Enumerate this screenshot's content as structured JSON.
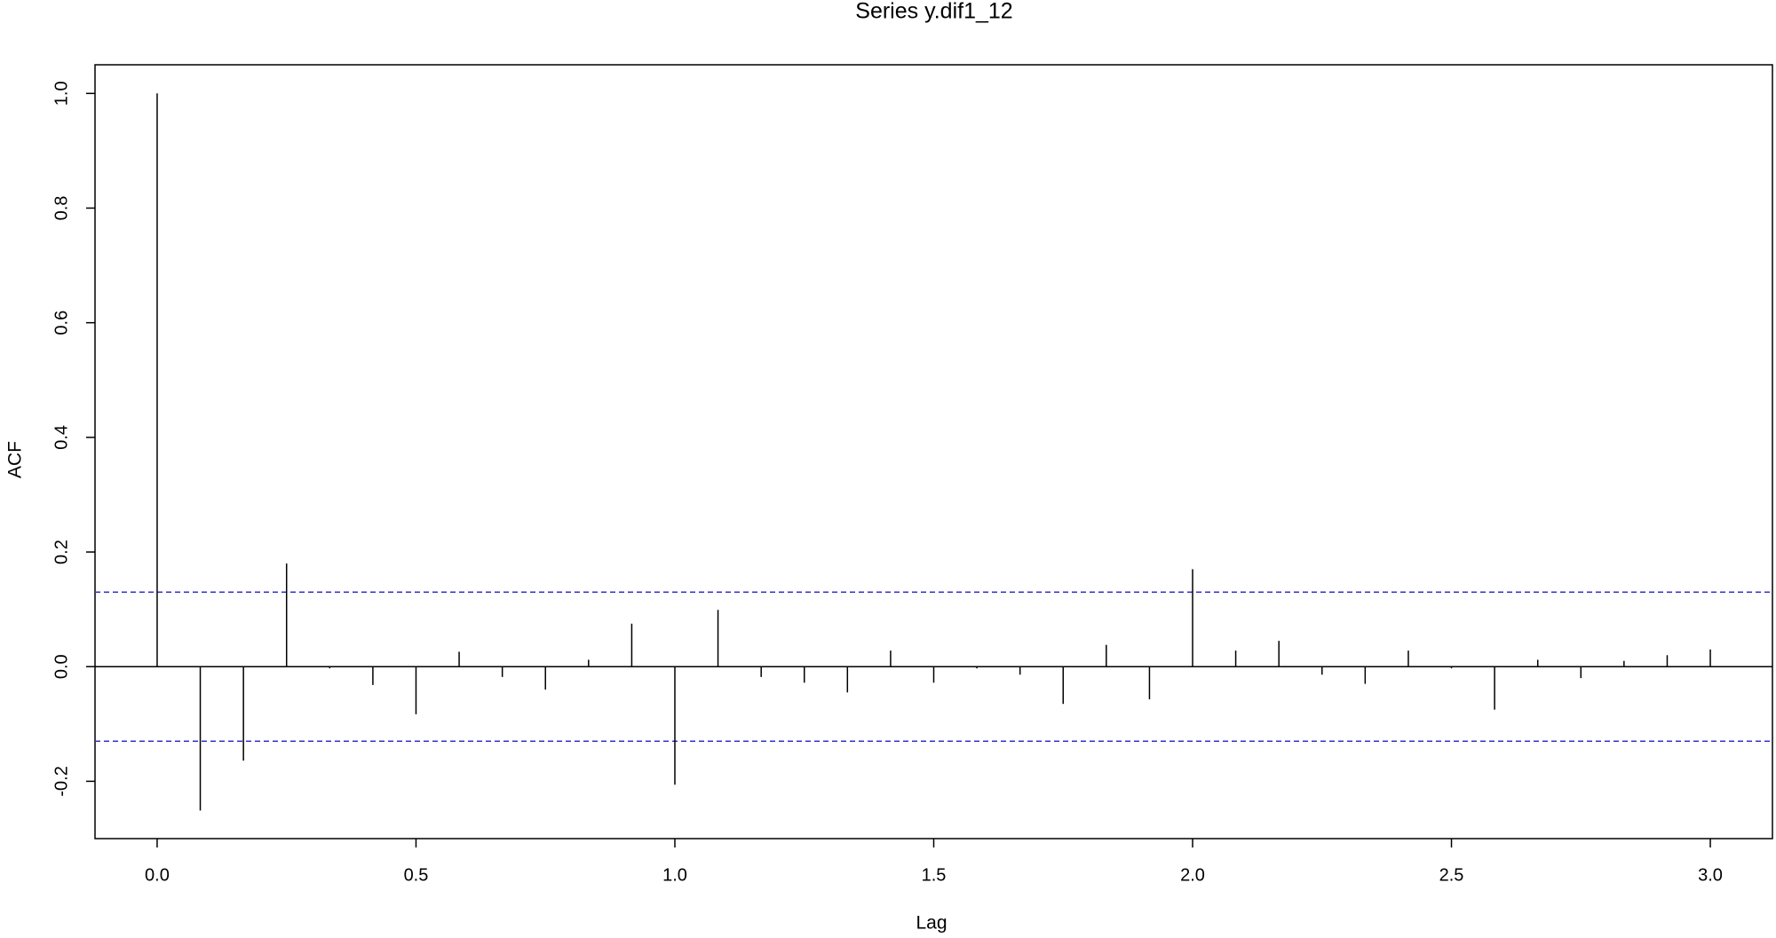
{
  "chart_data": {
    "type": "stem",
    "title": "Series y.dif1_12",
    "xlabel": "Lag",
    "ylabel": "ACF",
    "x": [
      0,
      0.0833,
      0.1667,
      0.25,
      0.3333,
      0.4167,
      0.5,
      0.5833,
      0.6667,
      0.75,
      0.8333,
      0.9167,
      1,
      1.0833,
      1.1667,
      1.25,
      1.3333,
      1.4167,
      1.5,
      1.5833,
      1.6667,
      1.75,
      1.8333,
      1.9167,
      2,
      2.0833,
      2.1667,
      2.25,
      2.3333,
      2.4167,
      2.5,
      2.5833,
      2.6667,
      2.75,
      2.8333,
      2.9167,
      3
    ],
    "values": [
      1.0,
      -0.251,
      -0.164,
      0.18,
      -0.003,
      -0.032,
      -0.083,
      0.026,
      -0.018,
      -0.04,
      0.012,
      0.075,
      -0.206,
      0.099,
      -0.018,
      -0.028,
      -0.045,
      0.028,
      -0.028,
      -0.003,
      -0.014,
      -0.065,
      0.038,
      -0.057,
      0.17,
      0.028,
      0.045,
      -0.014,
      -0.03,
      0.028,
      -0.003,
      -0.075,
      0.012,
      -0.02,
      0.01,
      0.02,
      0.03
    ],
    "color": "#000000",
    "conf_bounds": [
      0.13,
      -0.13
    ],
    "conf_color": "#3333cc",
    "xlim": [
      -0.12,
      3.12
    ],
    "ylim": [
      -0.3,
      1.05
    ],
    "xticks": [
      {
        "value": 0,
        "label": "0.0"
      },
      0.5,
      {
        "value": 1,
        "label": "1.0"
      },
      1.5,
      {
        "value": 2,
        "label": "2.0"
      },
      2.5,
      {
        "value": 3,
        "label": "3.0"
      }
    ],
    "yticks": [
      -0.2,
      {
        "value": 0,
        "label": "0.0"
      },
      0.2,
      0.4,
      0.6,
      0.8,
      {
        "value": 1,
        "label": "1.0"
      }
    ]
  }
}
